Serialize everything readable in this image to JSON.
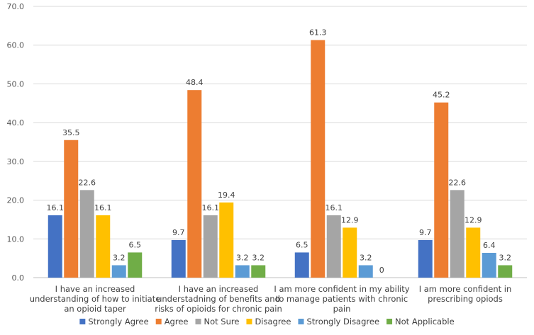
{
  "chart_data": {
    "type": "bar",
    "title": "",
    "xlabel": "",
    "ylabel": "",
    "ylim": [
      0,
      70
    ],
    "yticks": [
      "0.0",
      "10.0",
      "20.0",
      "30.0",
      "40.0",
      "50.0",
      "60.0",
      "70.0"
    ],
    "grid": true,
    "legend_position": "bottom",
    "categories": [
      [
        "I have an increased",
        "understanding of how to initiate",
        "an opioid taper"
      ],
      [
        "I have an increased",
        "understadning of benefits and",
        "risks of opioids for chronic pain"
      ],
      [
        "I am more confident in my ability",
        "to manage patients with chronic",
        "pain"
      ],
      [
        "I am more confident in",
        "prescribing opiods"
      ]
    ],
    "series": [
      {
        "name": "Strongly Agree",
        "color": "#4472C4",
        "values": [
          16.1,
          9.7,
          6.5,
          9.7
        ],
        "labels": [
          "16.1",
          "9.7",
          "6.5",
          "9.7"
        ]
      },
      {
        "name": "Agree",
        "color": "#ED7D31",
        "values": [
          35.5,
          48.4,
          61.3,
          45.2
        ],
        "labels": [
          "35.5",
          "48.4",
          "61.3",
          "45.2"
        ]
      },
      {
        "name": "Not Sure",
        "color": "#A5A5A5",
        "values": [
          22.6,
          16.1,
          16.1,
          22.6
        ],
        "labels": [
          "22.6",
          "16.1",
          "16.1",
          "22.6"
        ]
      },
      {
        "name": "Disagree",
        "color": "#FFC000",
        "values": [
          16.1,
          19.4,
          12.9,
          12.9
        ],
        "labels": [
          "16.1",
          "19.4",
          "12.9",
          "12.9"
        ]
      },
      {
        "name": "Strongly Disagree",
        "color": "#5B9BD5",
        "values": [
          3.2,
          3.2,
          3.2,
          6.4
        ],
        "labels": [
          "3.2",
          "3.2",
          "3.2",
          "6.4"
        ]
      },
      {
        "name": "Not Applicable",
        "color": "#70AD47",
        "values": [
          6.5,
          3.2,
          0,
          3.2
        ],
        "labels": [
          "6.5",
          "3.2",
          "0",
          "3.2"
        ]
      }
    ]
  }
}
